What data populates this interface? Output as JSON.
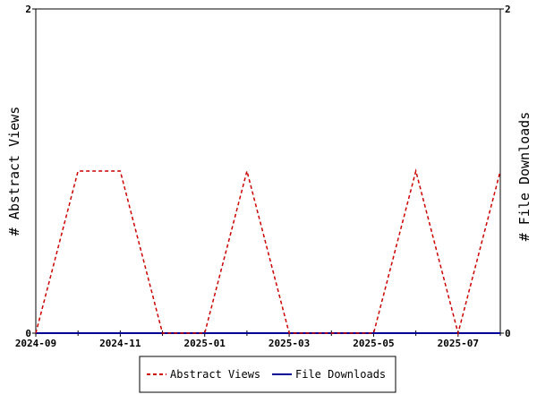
{
  "chart_data": {
    "type": "line",
    "x": [
      "2024-09",
      "2024-10",
      "2024-11",
      "2024-12",
      "2025-01",
      "2025-02",
      "2025-03",
      "2025-04",
      "2025-05",
      "2025-06",
      "2025-07",
      "2025-08"
    ],
    "x_tick_labels": [
      "2024-09",
      "2024-11",
      "2025-01",
      "2025-03",
      "2025-05",
      "2025-07"
    ],
    "series": [
      {
        "name": "Abstract Views",
        "axis": "left",
        "color": "#cc0000",
        "dash": "dashed",
        "values": [
          0,
          1,
          1,
          0,
          0,
          1,
          0,
          0,
          0,
          1,
          0,
          1
        ]
      },
      {
        "name": "File Downloads",
        "axis": "right",
        "color": "#000099",
        "dash": "solid",
        "values": [
          0,
          0,
          0,
          0,
          0,
          0,
          0,
          0,
          0,
          0,
          0,
          0
        ]
      }
    ],
    "ylabel": "# Abstract Views",
    "y2label": "# File Downloads",
    "ylim": [
      0,
      2
    ],
    "y2lim": [
      0,
      2
    ],
    "y_ticks": [
      "0",
      "2"
    ],
    "y2_ticks": [
      "0",
      "2"
    ],
    "legend_position": "bottom"
  }
}
